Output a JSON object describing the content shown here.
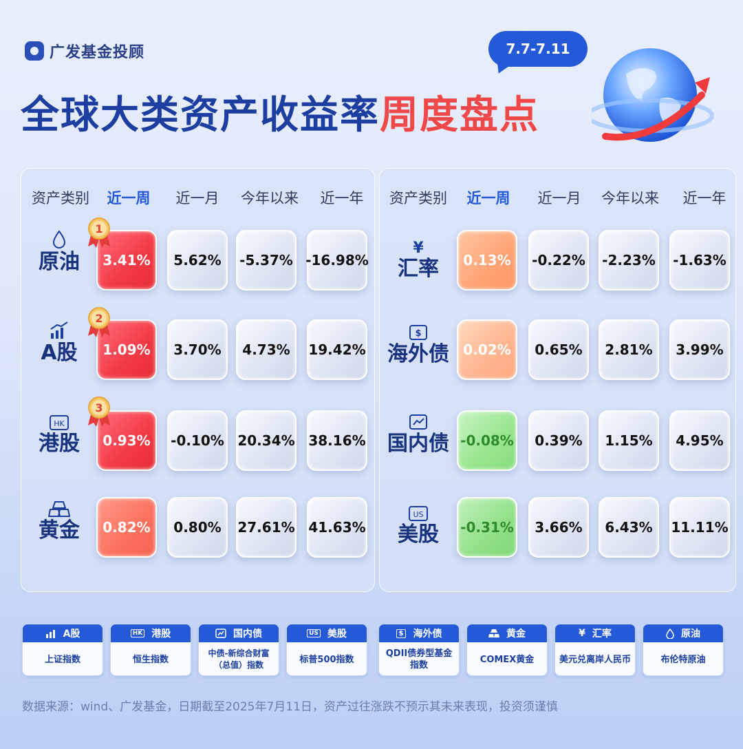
{
  "brand": {
    "name": "广发基金投顾"
  },
  "date_range": "7.7-7.11",
  "title": {
    "main": "全球大类资产收益率",
    "highlight": "周度盘点"
  },
  "columns": [
    "资产类别",
    "近一周",
    "近一月",
    "今年以来",
    "近一年"
  ],
  "left_table": [
    {
      "asset": "原油",
      "icon": "droplet-icon",
      "rank": "1",
      "week": "3.41%",
      "month": "5.62%",
      "ytd": "-5.37%",
      "year": "-16.98%",
      "week_color": "red"
    },
    {
      "asset": "A股",
      "icon": "chart-icon",
      "rank": "2",
      "week": "1.09%",
      "month": "3.70%",
      "ytd": "4.73%",
      "year": "19.42%",
      "week_color": "red"
    },
    {
      "asset": "港股",
      "icon": "hk-icon",
      "rank": "3",
      "week": "0.93%",
      "month": "-0.10%",
      "ytd": "20.34%",
      "year": "38.16%",
      "week_color": "red"
    },
    {
      "asset": "黄金",
      "icon": "gold-bar-icon",
      "week": "0.82%",
      "month": "0.80%",
      "ytd": "27.61%",
      "year": "41.63%",
      "week_color": "coral"
    }
  ],
  "right_table": [
    {
      "asset": "汇率",
      "icon": "yen-icon",
      "week": "0.13%",
      "month": "-0.22%",
      "ytd": "-2.23%",
      "year": "-1.63%",
      "week_color": "orange"
    },
    {
      "asset": "海外债",
      "icon": "dollar-bond-icon",
      "week": "0.02%",
      "month": "0.65%",
      "ytd": "2.81%",
      "year": "3.99%",
      "week_color": "peach"
    },
    {
      "asset": "国内债",
      "icon": "trend-icon",
      "week": "-0.08%",
      "month": "0.39%",
      "ytd": "1.15%",
      "year": "4.95%",
      "week_color": "green"
    },
    {
      "asset": "美股",
      "icon": "us-icon",
      "week": "-0.31%",
      "month": "3.66%",
      "ytd": "6.43%",
      "year": "11.11%",
      "week_color": "green"
    }
  ],
  "legend": [
    {
      "title": "A股",
      "icon": "chart-icon",
      "index": "上证指数"
    },
    {
      "title": "港股",
      "icon": "hk-icon",
      "badge": "HK",
      "index": "恒生指数"
    },
    {
      "title": "国内债",
      "icon": "trend-icon",
      "index": "中债-新综合财富（总值）指数"
    },
    {
      "title": "美股",
      "icon": "us-icon",
      "badge": "US",
      "index": "标普500指数"
    },
    {
      "title": "海外债",
      "icon": "dollar-bond-icon",
      "badge": "$",
      "index": "QDII债券型基金指数"
    },
    {
      "title": "黄金",
      "icon": "gold-bar-icon",
      "index": "COMEX黄金"
    },
    {
      "title": "汇率",
      "icon": "yen-icon",
      "badge": "¥",
      "index": "美元兑离岸人民币"
    },
    {
      "title": "原油",
      "icon": "droplet-icon",
      "index": "布伦特原油"
    }
  ],
  "colors": {
    "accent": "#2459d8",
    "title": "#1b3ea0",
    "highlight": "#f04848"
  },
  "source": "数据来源：wind、广发基金，日期截至2025年7月11日，资产过往涨跌不预示其未来表现，投资须谨慎"
}
